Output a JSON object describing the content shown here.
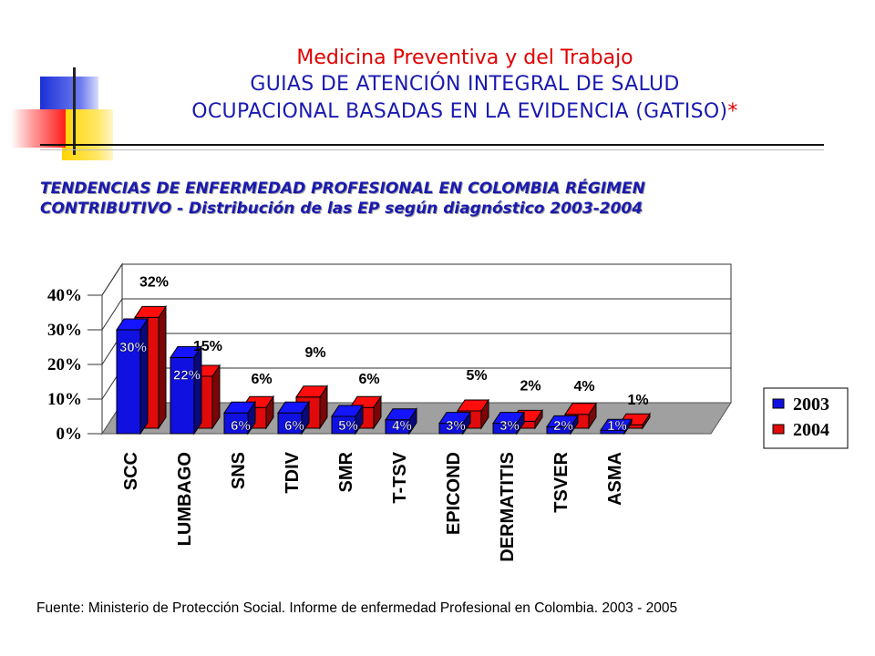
{
  "slide": {
    "title_line1": "Medicina Preventiva y del Trabajo",
    "title_line2": "GUIAS DE ATENCIÓN INTEGRAL DE SALUD",
    "title_line3": "OCUPACIONAL BASADAS EN LA EVIDENCIA (GATISO)",
    "title_asterisk": "*",
    "subtitle_line1": "TENDENCIAS DE ENFERMEDAD PROFESIONAL EN COLOMBIA RÉGIMEN",
    "subtitle_line2": "CONTRIBUTIVO - Distribución de las EP según diagnóstico 2003-2004",
    "source": "Fuente: Ministerio de Protección Social. Informe de enfermedad Profesional en Colombia. 2003 - 2005"
  },
  "colors": {
    "series_2003": "#1010e0",
    "series_2004": "#e00a0a",
    "title_red": "#e00000",
    "title_blue": "#1a1ab0",
    "floor": "#a0a0a0"
  },
  "chart_data": {
    "type": "bar",
    "categories": [
      "SCC",
      "LUMBAGO",
      "SNS",
      "TDIV",
      "SMR",
      "T-TSV",
      "EPICOND",
      "DERMATITIS",
      "TSVER",
      "ASMA"
    ],
    "series": [
      {
        "name": "2003",
        "values": [
          30,
          22,
          6,
          6,
          5,
          4,
          3,
          3,
          2,
          1
        ],
        "labels": [
          "30%",
          "22%",
          "6%",
          "6%",
          "5%",
          "4%",
          "3%",
          "3%",
          "2%",
          "1%"
        ]
      },
      {
        "name": "2004",
        "values": [
          32,
          15,
          6,
          9,
          6,
          0,
          5,
          2,
          4,
          1
        ],
        "labels": [
          "32%",
          "15%",
          "6%",
          "9%",
          "6%",
          "",
          "5%",
          "2%",
          "4%",
          "1%"
        ]
      }
    ],
    "ylim": [
      0,
      40
    ],
    "yticks": [
      "0%",
      "10%",
      "20%",
      "30%",
      "40%"
    ],
    "legend_position": "right",
    "grid": true,
    "three_d": true
  }
}
